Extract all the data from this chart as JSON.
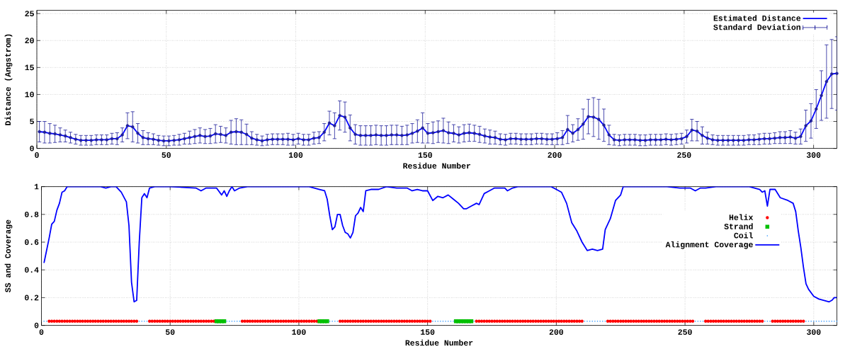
{
  "chart_data": [
    {
      "type": "line",
      "xlabel": "Residue Number",
      "ylabel": "Distance (Angstrom)",
      "xlim": [
        0,
        309
      ],
      "ylim": [
        0,
        25.6
      ],
      "xticks": [
        0,
        50,
        100,
        150,
        200,
        250,
        300
      ],
      "yticks": [
        0,
        5,
        10,
        15,
        20,
        25
      ],
      "grid": true,
      "legend": "top right",
      "x": [
        1,
        3,
        5,
        7,
        9,
        11,
        13,
        15,
        17,
        19,
        21,
        23,
        25,
        27,
        29,
        31,
        33,
        35,
        37,
        39,
        41,
        43,
        45,
        47,
        49,
        51,
        53,
        55,
        57,
        59,
        61,
        63,
        65,
        67,
        69,
        71,
        73,
        75,
        77,
        79,
        81,
        83,
        85,
        87,
        89,
        91,
        93,
        95,
        97,
        99,
        101,
        103,
        105,
        107,
        109,
        111,
        113,
        115,
        117,
        119,
        121,
        123,
        125,
        127,
        129,
        131,
        133,
        135,
        137,
        139,
        141,
        143,
        145,
        147,
        149,
        151,
        153,
        155,
        157,
        159,
        161,
        163,
        165,
        167,
        169,
        171,
        173,
        175,
        177,
        179,
        181,
        183,
        185,
        187,
        189,
        191,
        193,
        195,
        197,
        199,
        201,
        203,
        205,
        207,
        209,
        211,
        213,
        215,
        217,
        219,
        221,
        223,
        225,
        227,
        229,
        231,
        233,
        235,
        237,
        239,
        241,
        243,
        245,
        247,
        249,
        251,
        253,
        255,
        257,
        259,
        261,
        263,
        265,
        267,
        269,
        271,
        273,
        275,
        277,
        279,
        281,
        283,
        285,
        287,
        289,
        291,
        293,
        295,
        297,
        299,
        301,
        303,
        305,
        307,
        309
      ],
      "series": [
        {
          "name": "Estimated Distance",
          "color": "#0000ff",
          "values": [
            3.1,
            3.0,
            2.8,
            2.7,
            2.5,
            2.3,
            2.0,
            1.7,
            1.5,
            1.5,
            1.5,
            1.6,
            1.6,
            1.6,
            1.8,
            1.8,
            2.5,
            4.2,
            4.0,
            2.8,
            2.0,
            1.8,
            1.7,
            1.5,
            1.4,
            1.4,
            1.5,
            1.6,
            1.8,
            2.0,
            2.2,
            2.4,
            2.2,
            2.3,
            2.7,
            2.6,
            2.4,
            3.0,
            3.1,
            3.0,
            2.6,
            1.9,
            1.6,
            1.4,
            1.6,
            1.7,
            1.7,
            1.7,
            1.7,
            1.6,
            1.8,
            1.6,
            1.6,
            1.9,
            2.0,
            3.0,
            4.7,
            4.2,
            6.1,
            5.8,
            3.8,
            2.6,
            2.4,
            2.4,
            2.4,
            2.5,
            2.4,
            2.4,
            2.5,
            2.5,
            2.4,
            2.5,
            2.8,
            3.2,
            3.8,
            2.8,
            2.9,
            3.1,
            3.3,
            2.9,
            2.8,
            2.5,
            2.8,
            2.9,
            2.8,
            2.6,
            2.3,
            2.1,
            2.0,
            1.7,
            1.6,
            1.8,
            1.8,
            1.7,
            1.7,
            1.7,
            1.8,
            1.8,
            1.7,
            1.7,
            1.8,
            2.0,
            3.5,
            2.8,
            3.5,
            4.5,
            5.9,
            5.8,
            5.4,
            4.3,
            2.5,
            1.6,
            1.5,
            1.6,
            1.6,
            1.6,
            1.5,
            1.5,
            1.6,
            1.6,
            1.6,
            1.7,
            1.6,
            1.7,
            1.8,
            2.2,
            3.4,
            3.2,
            2.4,
            1.9,
            1.6,
            1.5,
            1.5,
            1.5,
            1.5,
            1.5,
            1.5,
            1.6,
            1.6,
            1.7,
            1.8,
            1.8,
            1.9,
            2.0,
            2.0,
            2.1,
            1.9,
            2.2,
            4.2,
            5.1,
            7.3,
            9.8,
            12.4,
            13.8,
            13.9
          ]
        },
        {
          "name": "Standard Deviation",
          "type": "scatter",
          "marker": "none",
          "color": "#20209a",
          "values": [
            3.1,
            3.0,
            2.8,
            2.7,
            2.5,
            2.3,
            2.0,
            1.7,
            1.5,
            1.5,
            1.5,
            1.6,
            1.6,
            1.6,
            1.8,
            1.8,
            2.5,
            4.2,
            4.0,
            2.8,
            2.0,
            1.8,
            1.7,
            1.5,
            1.4,
            1.4,
            1.5,
            1.6,
            1.8,
            2.0,
            2.2,
            2.4,
            2.2,
            2.3,
            2.7,
            2.6,
            2.4,
            3.0,
            3.1,
            3.0,
            2.6,
            1.9,
            1.6,
            1.4,
            1.6,
            1.7,
            1.7,
            1.7,
            1.7,
            1.6,
            1.8,
            1.6,
            1.6,
            1.9,
            2.0,
            3.0,
            4.7,
            4.2,
            6.1,
            5.8,
            3.8,
            2.6,
            2.4,
            2.4,
            2.4,
            2.5,
            2.4,
            2.4,
            2.5,
            2.5,
            2.4,
            2.5,
            2.8,
            3.2,
            3.8,
            2.8,
            2.9,
            3.1,
            3.3,
            2.9,
            2.8,
            2.5,
            2.8,
            2.9,
            2.8,
            2.6,
            2.3,
            2.1,
            2.0,
            1.7,
            1.6,
            1.8,
            1.8,
            1.7,
            1.7,
            1.7,
            1.8,
            1.8,
            1.7,
            1.7,
            1.8,
            2.0,
            3.5,
            2.8,
            3.5,
            4.5,
            5.9,
            5.8,
            5.4,
            4.3,
            2.5,
            1.6,
            1.5,
            1.6,
            1.6,
            1.6,
            1.5,
            1.5,
            1.6,
            1.6,
            1.6,
            1.7,
            1.6,
            1.7,
            1.8,
            2.2,
            3.4,
            3.2,
            2.4,
            1.9,
            1.6,
            1.5,
            1.5,
            1.5,
            1.5,
            1.5,
            1.5,
            1.6,
            1.6,
            1.7,
            1.8,
            1.8,
            1.9,
            2.0,
            2.0,
            2.1,
            1.9,
            2.2,
            4.2,
            5.1,
            7.3,
            9.8,
            12.4,
            13.8,
            13.9
          ],
          "errors": [
            1.9,
            2.0,
            1.8,
            1.6,
            1.3,
            1.1,
            1.0,
            0.9,
            0.9,
            0.9,
            0.9,
            0.9,
            0.9,
            0.9,
            1.0,
            1.1,
            1.3,
            2.4,
            2.8,
            1.8,
            1.3,
            1.1,
            1.0,
            0.9,
            0.9,
            0.9,
            0.9,
            1.0,
            1.0,
            1.2,
            1.3,
            1.4,
            1.3,
            1.4,
            1.7,
            1.5,
            1.4,
            2.2,
            2.4,
            2.3,
            1.9,
            1.2,
            1.0,
            0.9,
            1.0,
            1.0,
            1.0,
            1.0,
            1.1,
            1.0,
            1.0,
            1.0,
            1.0,
            1.1,
            1.1,
            1.6,
            2.2,
            2.4,
            2.7,
            2.8,
            2.4,
            1.8,
            1.8,
            1.8,
            1.8,
            1.8,
            1.8,
            1.8,
            1.8,
            1.8,
            1.7,
            1.8,
            1.8,
            2.1,
            2.8,
            1.8,
            2.0,
            2.0,
            2.3,
            2.0,
            1.6,
            1.5,
            1.6,
            1.6,
            1.5,
            1.5,
            1.3,
            1.3,
            1.2,
            1.0,
            1.0,
            1.0,
            1.0,
            1.0,
            1.0,
            1.0,
            1.0,
            1.0,
            1.0,
            1.0,
            1.1,
            1.3,
            2.6,
            1.6,
            2.0,
            2.8,
            3.2,
            3.6,
            3.7,
            3.0,
            1.8,
            1.0,
            1.0,
            1.0,
            1.0,
            1.0,
            1.0,
            1.0,
            1.0,
            1.0,
            1.0,
            1.0,
            1.0,
            1.0,
            1.0,
            1.2,
            2.0,
            1.8,
            1.6,
            1.1,
            0.9,
            0.9,
            0.9,
            0.9,
            0.9,
            0.9,
            0.9,
            0.9,
            0.9,
            1.0,
            1.0,
            1.0,
            1.0,
            1.1,
            1.1,
            1.2,
            1.1,
            1.4,
            2.9,
            3.2,
            3.6,
            4.6,
            6.8,
            6.4,
            6.8
          ]
        }
      ]
    },
    {
      "type": "line",
      "xlabel": "Residue Number",
      "ylabel": "SS and Coverage",
      "xlim": [
        0,
        309
      ],
      "ylim": [
        0,
        1
      ],
      "xticks": [
        0,
        50,
        100,
        150,
        200,
        250,
        300
      ],
      "yticks": [
        0,
        0.2,
        0.4,
        0.6,
        0.8,
        1
      ],
      "grid": true,
      "legend": "right",
      "series": [
        {
          "name": "Helix",
          "type": "scatter",
          "marker": "circle",
          "color": "#ff0000",
          "x": [
            3,
            4,
            5,
            6,
            7,
            8,
            9,
            10,
            11,
            12,
            13,
            14,
            15,
            16,
            17,
            18,
            19,
            20,
            21,
            22,
            23,
            24,
            25,
            26,
            27,
            28,
            29,
            30,
            31,
            32,
            33,
            34,
            35,
            36,
            37,
            42,
            43,
            44,
            45,
            46,
            47,
            48,
            49,
            50,
            51,
            52,
            53,
            54,
            55,
            56,
            57,
            58,
            59,
            60,
            61,
            62,
            63,
            64,
            65,
            66,
            67,
            78,
            79,
            80,
            81,
            82,
            83,
            84,
            85,
            86,
            87,
            88,
            89,
            90,
            91,
            92,
            93,
            94,
            95,
            96,
            97,
            98,
            99,
            100,
            101,
            102,
            103,
            104,
            105,
            106,
            107,
            116,
            117,
            118,
            119,
            120,
            121,
            122,
            123,
            124,
            125,
            126,
            127,
            128,
            129,
            130,
            131,
            132,
            133,
            134,
            135,
            136,
            137,
            138,
            139,
            140,
            141,
            142,
            143,
            144,
            145,
            146,
            147,
            148,
            149,
            150,
            151,
            169,
            170,
            171,
            172,
            173,
            174,
            175,
            176,
            177,
            178,
            179,
            180,
            181,
            182,
            183,
            184,
            185,
            186,
            187,
            188,
            189,
            190,
            191,
            192,
            193,
            194,
            195,
            196,
            197,
            198,
            199,
            200,
            201,
            202,
            203,
            204,
            205,
            206,
            207,
            208,
            209,
            210,
            220,
            221,
            222,
            223,
            224,
            225,
            226,
            227,
            228,
            229,
            230,
            231,
            232,
            233,
            234,
            235,
            236,
            237,
            238,
            239,
            240,
            241,
            242,
            243,
            244,
            245,
            246,
            247,
            248,
            249,
            250,
            251,
            252,
            253,
            258,
            259,
            260,
            261,
            262,
            263,
            264,
            265,
            266,
            267,
            268,
            269,
            270,
            271,
            272,
            273,
            274,
            275,
            276,
            277,
            278,
            279,
            280,
            284,
            285,
            286,
            287,
            288,
            289,
            290,
            291,
            292,
            293,
            294,
            295,
            296
          ],
          "values": [
            0.03,
            0.03,
            0.03,
            0.03,
            0.03,
            0.03,
            0.03,
            0.03,
            0.03,
            0.03,
            0.03,
            0.03,
            0.03,
            0.03,
            0.03,
            0.03,
            0.03,
            0.03,
            0.03,
            0.03,
            0.03,
            0.03,
            0.03,
            0.03,
            0.03,
            0.03,
            0.03,
            0.03,
            0.03,
            0.03,
            0.03,
            0.03,
            0.03,
            0.03,
            0.03,
            0.03,
            0.03,
            0.03,
            0.03,
            0.03,
            0.03,
            0.03,
            0.03,
            0.03,
            0.03,
            0.03,
            0.03,
            0.03,
            0.03,
            0.03,
            0.03,
            0.03,
            0.03,
            0.03,
            0.03,
            0.03,
            0.03,
            0.03,
            0.03,
            0.03,
            0.03,
            0.03,
            0.03,
            0.03,
            0.03,
            0.03,
            0.03,
            0.03,
            0.03,
            0.03,
            0.03,
            0.03,
            0.03,
            0.03,
            0.03,
            0.03,
            0.03,
            0.03,
            0.03,
            0.03,
            0.03,
            0.03,
            0.03,
            0.03,
            0.03,
            0.03,
            0.03,
            0.03,
            0.03,
            0.03,
            0.03,
            0.03,
            0.03,
            0.03,
            0.03,
            0.03,
            0.03,
            0.03,
            0.03,
            0.03,
            0.03,
            0.03,
            0.03,
            0.03,
            0.03,
            0.03,
            0.03,
            0.03,
            0.03,
            0.03,
            0.03,
            0.03,
            0.03,
            0.03,
            0.03,
            0.03,
            0.03,
            0.03,
            0.03,
            0.03,
            0.03,
            0.03,
            0.03,
            0.03,
            0.03,
            0.03,
            0.03,
            0.03,
            0.03,
            0.03,
            0.03,
            0.03,
            0.03,
            0.03,
            0.03,
            0.03,
            0.03,
            0.03,
            0.03,
            0.03,
            0.03,
            0.03,
            0.03,
            0.03,
            0.03,
            0.03,
            0.03,
            0.03,
            0.03,
            0.03,
            0.03,
            0.03,
            0.03,
            0.03,
            0.03,
            0.03,
            0.03,
            0.03,
            0.03,
            0.03,
            0.03,
            0.03,
            0.03,
            0.03,
            0.03,
            0.03,
            0.03,
            0.03,
            0.03,
            0.03,
            0.03,
            0.03,
            0.03,
            0.03,
            0.03,
            0.03,
            0.03,
            0.03,
            0.03,
            0.03,
            0.03,
            0.03,
            0.03,
            0.03,
            0.03,
            0.03,
            0.03,
            0.03,
            0.03,
            0.03,
            0.03,
            0.03,
            0.03,
            0.03,
            0.03,
            0.03,
            0.03,
            0.03,
            0.03,
            0.03,
            0.03,
            0.03,
            0.03,
            0.03,
            0.03,
            0.03,
            0.03,
            0.03,
            0.03,
            0.03,
            0.03,
            0.03,
            0.03,
            0.03,
            0.03,
            0.03,
            0.03,
            0.03,
            0.03,
            0.03,
            0.03,
            0.03,
            0.03,
            0.03,
            0.03,
            0.03,
            0.03,
            0.03,
            0.03,
            0.03,
            0.03,
            0.03,
            0.03,
            0.03,
            0.03,
            0.03,
            0.03,
            0.03,
            0.03
          ]
        },
        {
          "name": "Strand",
          "type": "scatter",
          "marker": "square",
          "color": "#00c000",
          "x": [
            68,
            69,
            70,
            71,
            108,
            109,
            110,
            111,
            161,
            162,
            163,
            164,
            165,
            166,
            167
          ],
          "values": [
            0.03,
            0.03,
            0.03,
            0.03,
            0.03,
            0.03,
            0.03,
            0.03,
            0.03,
            0.03,
            0.03,
            0.03,
            0.03,
            0.03,
            0.03
          ]
        },
        {
          "name": "Coil",
          "type": "scatter",
          "marker": "circle",
          "color": "#3399ff",
          "x": [
            1,
            2,
            38,
            39,
            40,
            41,
            72,
            73,
            74,
            75,
            76,
            77,
            112,
            113,
            114,
            115,
            152,
            153,
            154,
            155,
            156,
            157,
            158,
            159,
            160,
            168,
            211,
            212,
            213,
            214,
            215,
            216,
            217,
            218,
            219,
            254,
            255,
            256,
            257,
            281,
            282,
            283,
            297,
            298,
            299,
            300,
            301,
            302,
            303,
            304,
            305,
            306,
            307,
            308,
            309
          ],
          "values": [
            0.03,
            0.03,
            0.03,
            0.03,
            0.03,
            0.03,
            0.03,
            0.03,
            0.03,
            0.03,
            0.03,
            0.03,
            0.03,
            0.03,
            0.03,
            0.03,
            0.03,
            0.03,
            0.03,
            0.03,
            0.03,
            0.03,
            0.03,
            0.03,
            0.03,
            0.03,
            0.03,
            0.03,
            0.03,
            0.03,
            0.03,
            0.03,
            0.03,
            0.03,
            0.03,
            0.03,
            0.03,
            0.03,
            0.03,
            0.03,
            0.03,
            0.03,
            0.03,
            0.03,
            0.03,
            0.03,
            0.03,
            0.03,
            0.03,
            0.03,
            0.03,
            0.03,
            0.03,
            0.03,
            0.03
          ]
        },
        {
          "name": "Alignment Coverage",
          "color": "#0000ff",
          "x": [
            1,
            2,
            3,
            4,
            5,
            6,
            7,
            8,
            9,
            10,
            23,
            25,
            27,
            29,
            31,
            33,
            34,
            35,
            36,
            37,
            38,
            39,
            40,
            41,
            42,
            44,
            50,
            60,
            62,
            64,
            68,
            70,
            71,
            72,
            73,
            74,
            75,
            77,
            80,
            104,
            106,
            108,
            110,
            111,
            112,
            113,
            114,
            115,
            116,
            117,
            118,
            119,
            120,
            121,
            122,
            123,
            124,
            125,
            126,
            128,
            131,
            134,
            138,
            142,
            144,
            146,
            148,
            150,
            152,
            154,
            156,
            158,
            160,
            162,
            164,
            165,
            167,
            169,
            170,
            172,
            174,
            176,
            178,
            180,
            181,
            183,
            185,
            198,
            200,
            202,
            204,
            206,
            208,
            210,
            212,
            214,
            216,
            218,
            219,
            221,
            223,
            225,
            226,
            243,
            248,
            252,
            254,
            256,
            258,
            262,
            275,
            277,
            279,
            280,
            281,
            282,
            283,
            285,
            287,
            290,
            292,
            293,
            294,
            295,
            296,
            297,
            298,
            300,
            302,
            304,
            306,
            307,
            308,
            309
          ],
          "values": [
            0.45,
            0.54,
            0.63,
            0.73,
            0.75,
            0.83,
            0.88,
            0.96,
            0.97,
            1,
            1,
            0.99,
            1,
            1,
            0.96,
            0.89,
            0.72,
            0.31,
            0.17,
            0.18,
            0.6,
            0.92,
            0.95,
            0.92,
            0.99,
            1,
            1,
            0.99,
            0.97,
            0.99,
            0.99,
            0.94,
            0.97,
            0.93,
            0.97,
            1,
            0.97,
            0.99,
            1,
            1,
            0.99,
            0.98,
            0.97,
            0.91,
            0.79,
            0.69,
            0.71,
            0.8,
            0.8,
            0.72,
            0.67,
            0.66,
            0.63,
            0.67,
            0.79,
            0.81,
            0.85,
            0.82,
            0.97,
            0.98,
            0.98,
            1,
            0.99,
            0.99,
            0.97,
            0.98,
            0.97,
            0.97,
            0.9,
            0.93,
            0.92,
            0.94,
            0.91,
            0.88,
            0.84,
            0.84,
            0.86,
            0.88,
            0.87,
            0.95,
            0.97,
            0.99,
            0.99,
            0.99,
            0.97,
            0.99,
            1,
            1,
            0.98,
            0.96,
            0.88,
            0.74,
            0.68,
            0.6,
            0.54,
            0.55,
            0.54,
            0.55,
            0.69,
            0.77,
            0.9,
            0.94,
            1,
            1,
            0.99,
            0.99,
            0.97,
            0.99,
            0.99,
            1,
            1,
            0.99,
            0.98,
            0.96,
            0.97,
            0.86,
            0.98,
            0.98,
            0.92,
            0.9,
            0.88,
            0.82,
            0.68,
            0.56,
            0.42,
            0.3,
            0.26,
            0.21,
            0.19,
            0.18,
            0.17,
            0.18,
            0.2,
            0.2
          ]
        }
      ]
    }
  ]
}
